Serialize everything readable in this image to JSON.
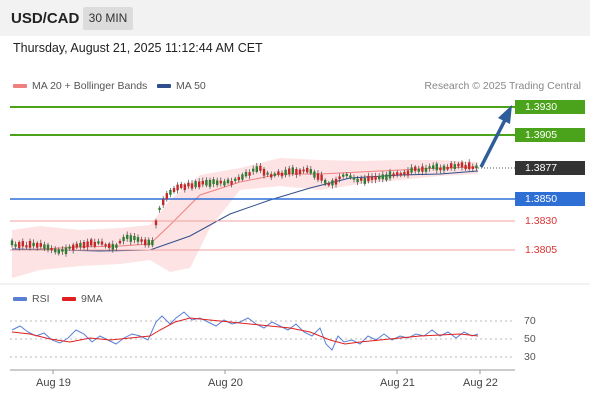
{
  "header": {
    "pair": "USD/CAD",
    "timeframe": "30 MIN"
  },
  "timestamp": "Thursday, August 21, 2025 11:12:44 AM CET",
  "legend": {
    "ma20": "MA 20 + Bollinger Bands",
    "ma50": "MA 50",
    "credit": "Research © 2025 Trading Central"
  },
  "levels": {
    "r2": "1.3930",
    "r1": "1.3905",
    "last": "1.3877",
    "pivot": "1.3850",
    "s1": "1.3830",
    "s2": "1.3805"
  },
  "rsi_legend": {
    "rsi": "RSI",
    "ma": "9MA"
  },
  "rsi_ticks": [
    "70",
    "50",
    "30"
  ],
  "dates": [
    "Aug 19",
    "Aug 20",
    "Aug 21",
    "Aug 22"
  ],
  "colors": {
    "resistance": "#4aa31a",
    "pivot": "#2e6fd6",
    "support": "#e46b6b",
    "up_candle": "#2e7d32",
    "down_candle": "#c62828",
    "ma20": "#f08080",
    "ma50": "#2f4f8f",
    "arrow": "#2f5d9a",
    "rsi": "#5a7fd6",
    "rsi_ma": "#e02020"
  }
}
